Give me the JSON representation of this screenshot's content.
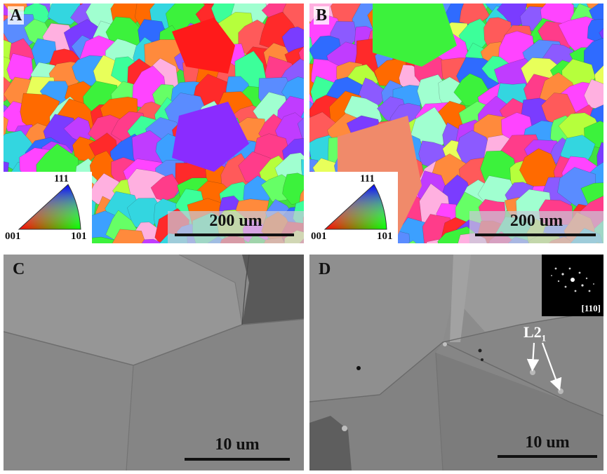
{
  "panels": {
    "a": {
      "letter": "A",
      "scale_label": "200 um"
    },
    "b": {
      "letter": "B",
      "scale_label": "200 um"
    },
    "c": {
      "letter": "C",
      "scale_label": "10 um"
    },
    "d": {
      "letter": "D",
      "scale_label": "10 um",
      "annotation_main": "L2",
      "annotation_sub": "1",
      "diffraction_label": "[110]"
    }
  },
  "ipf_legend": {
    "top": "111",
    "left": "001",
    "right": "101"
  },
  "icons": [
    "ipf-triangle-icon",
    "arrow-icon"
  ],
  "colors": {
    "sem_background": "#8a8a8a",
    "scale_bar": "#111111",
    "legend_box": "#ffffff"
  }
}
